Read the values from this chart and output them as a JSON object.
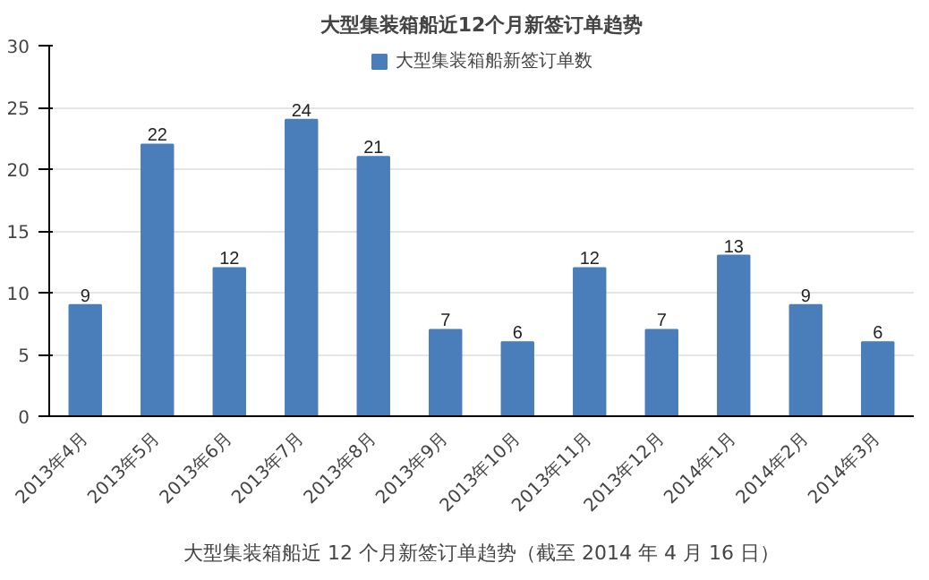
{
  "chart_data": {
    "type": "bar",
    "title": "大型集装箱船近12个月新签订单趋势",
    "categories": [
      "2013年4月",
      "2013年5月",
      "2013年6月",
      "2013年7月",
      "2013年8月",
      "2013年9月",
      "2013年10月",
      "2013年11月",
      "2013年12月",
      "2014年1月",
      "2014年2月",
      "2014年3月"
    ],
    "series": [
      {
        "name": "大型集装箱船新签订单数",
        "color": "#4a7ebb",
        "values": [
          9,
          22,
          12,
          24,
          21,
          7,
          6,
          12,
          7,
          13,
          9,
          6
        ]
      }
    ],
    "ylim": [
      0,
      30
    ],
    "yticks": [
      0,
      5,
      10,
      15,
      20,
      25,
      30
    ],
    "grid": "y",
    "legend": "top",
    "data_labels": true,
    "annotations": [
      "大型集装箱船近 12 个月新签订单趋势（截至 2014 年 4 月 16 日）"
    ]
  }
}
